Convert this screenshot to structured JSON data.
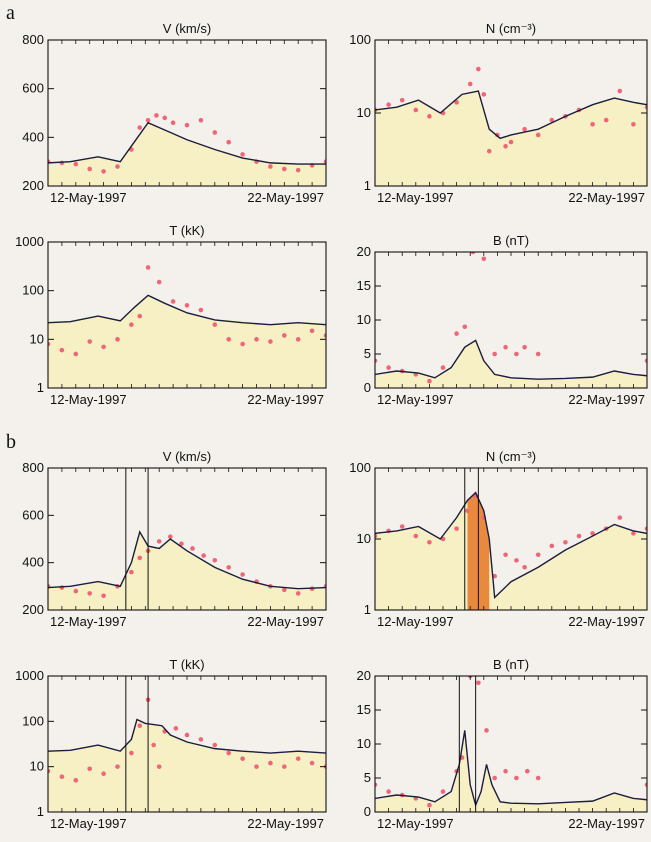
{
  "panel_labels": [
    "a",
    "b"
  ],
  "colors": {
    "fill": "#f7f0c4",
    "fill_dark": "#e8893e",
    "model_line": "#1c1c3c",
    "points": "#f06676",
    "axis": "#111111"
  },
  "chart_data": [
    {
      "type": "line",
      "title": "V (km/s)",
      "yscale": "linear",
      "ylim": [
        200,
        800
      ],
      "yticks": [
        200,
        400,
        600,
        800
      ],
      "xticks": [
        "12-May-1997",
        "22-May-1997"
      ],
      "series": [
        {
          "kind": "model",
          "x": [
            0,
            0.08,
            0.18,
            0.26,
            0.31,
            0.36,
            0.42,
            0.5,
            0.6,
            0.7,
            0.8,
            0.9,
            1
          ],
          "y": [
            295,
            300,
            320,
            300,
            380,
            460,
            430,
            390,
            350,
            315,
            295,
            290,
            290
          ]
        },
        {
          "kind": "observed",
          "x": [
            0,
            0.05,
            0.1,
            0.15,
            0.2,
            0.25,
            0.3,
            0.33,
            0.36,
            0.39,
            0.42,
            0.45,
            0.5,
            0.55,
            0.6,
            0.65,
            0.7,
            0.75,
            0.8,
            0.85,
            0.9,
            0.95,
            1
          ],
          "y": [
            300,
            295,
            290,
            270,
            260,
            280,
            350,
            440,
            470,
            490,
            480,
            460,
            450,
            470,
            420,
            380,
            330,
            300,
            280,
            270,
            265,
            285,
            300
          ]
        }
      ]
    },
    {
      "type": "line",
      "title": "N (cm⁻³)",
      "yscale": "log",
      "ylim": [
        1,
        100
      ],
      "yticks": [
        1,
        10,
        100
      ],
      "xticks": [
        "12-May-1997",
        "22-May-1997"
      ],
      "series": [
        {
          "kind": "model",
          "x": [
            0,
            0.08,
            0.16,
            0.24,
            0.32,
            0.38,
            0.42,
            0.46,
            0.5,
            0.6,
            0.7,
            0.8,
            0.88,
            0.95,
            1
          ],
          "y": [
            11,
            12,
            15,
            10,
            18,
            20,
            6,
            4.5,
            5,
            6,
            9,
            13,
            16,
            14,
            13
          ]
        },
        {
          "kind": "observed",
          "x": [
            0,
            0.05,
            0.1,
            0.15,
            0.2,
            0.25,
            0.3,
            0.35,
            0.38,
            0.4,
            0.42,
            0.45,
            0.48,
            0.5,
            0.55,
            0.6,
            0.65,
            0.7,
            0.75,
            0.8,
            0.85,
            0.9,
            0.95,
            1
          ],
          "y": [
            11,
            13,
            15,
            11,
            9,
            10,
            14,
            25,
            40,
            18,
            3,
            5,
            3.5,
            4,
            6,
            5,
            8,
            9,
            11,
            7,
            8,
            20,
            7,
            12
          ]
        }
      ]
    },
    {
      "type": "line",
      "title": "T (kK)",
      "yscale": "log",
      "ylim": [
        1,
        1000
      ],
      "yticks": [
        1,
        10,
        100,
        1000
      ],
      "xticks": [
        "12-May-1997",
        "22-May-1997"
      ],
      "series": [
        {
          "kind": "model",
          "x": [
            0,
            0.08,
            0.18,
            0.26,
            0.31,
            0.36,
            0.42,
            0.5,
            0.6,
            0.7,
            0.8,
            0.9,
            1
          ],
          "y": [
            22,
            23,
            30,
            24,
            45,
            80,
            55,
            35,
            25,
            22,
            20,
            22,
            20
          ]
        },
        {
          "kind": "observed",
          "x": [
            0,
            0.05,
            0.1,
            0.15,
            0.2,
            0.25,
            0.3,
            0.33,
            0.36,
            0.4,
            0.45,
            0.5,
            0.55,
            0.6,
            0.65,
            0.7,
            0.75,
            0.8,
            0.85,
            0.9,
            0.95,
            1
          ],
          "y": [
            8,
            6,
            5,
            9,
            7,
            10,
            20,
            30,
            300,
            150,
            60,
            50,
            40,
            20,
            10,
            8,
            10,
            9,
            12,
            10,
            15,
            12
          ]
        }
      ]
    },
    {
      "type": "line",
      "title": "B (nT)",
      "yscale": "linear",
      "ylim": [
        0,
        20
      ],
      "yticks": [
        0,
        5,
        10,
        15,
        20
      ],
      "xticks": [
        "12-May-1997",
        "22-May-1997"
      ],
      "series": [
        {
          "kind": "model",
          "x": [
            0,
            0.08,
            0.16,
            0.22,
            0.28,
            0.33,
            0.37,
            0.4,
            0.44,
            0.5,
            0.6,
            0.7,
            0.8,
            0.88,
            0.95,
            1
          ],
          "y": [
            2,
            2.5,
            2.2,
            1.5,
            3,
            6,
            7,
            4,
            2,
            1.5,
            1.3,
            1.4,
            1.6,
            2.5,
            2,
            1.8
          ]
        },
        {
          "kind": "observed",
          "x": [
            0,
            0.05,
            0.1,
            0.15,
            0.2,
            0.25,
            0.3,
            0.33,
            0.36,
            0.4,
            0.44,
            0.48,
            0.52,
            0.55,
            0.6,
            1
          ],
          "y": [
            4,
            3,
            2.5,
            2,
            1,
            3,
            8,
            9,
            20,
            19,
            5,
            6,
            5,
            6,
            5,
            4
          ]
        }
      ]
    },
    {
      "type": "line",
      "title": "V (km/s)",
      "yscale": "linear",
      "ylim": [
        200,
        800
      ],
      "yticks": [
        200,
        400,
        600,
        800
      ],
      "xticks": [
        "12-May-1997",
        "22-May-1997"
      ],
      "series": [
        {
          "kind": "model",
          "x": [
            0,
            0.08,
            0.18,
            0.26,
            0.3,
            0.33,
            0.36,
            0.4,
            0.44,
            0.5,
            0.6,
            0.7,
            0.8,
            0.9,
            1
          ],
          "y": [
            295,
            300,
            320,
            300,
            400,
            530,
            470,
            460,
            500,
            450,
            380,
            330,
            300,
            290,
            295
          ]
        },
        {
          "kind": "observed",
          "x": [
            0,
            0.05,
            0.1,
            0.15,
            0.2,
            0.25,
            0.3,
            0.33,
            0.36,
            0.4,
            0.44,
            0.48,
            0.52,
            0.56,
            0.6,
            0.65,
            0.7,
            0.75,
            0.8,
            0.85,
            0.9,
            0.95,
            1
          ],
          "y": [
            300,
            295,
            280,
            270,
            260,
            300,
            360,
            420,
            450,
            490,
            510,
            480,
            460,
            430,
            410,
            380,
            350,
            320,
            300,
            285,
            270,
            290,
            300
          ]
        }
      ]
    },
    {
      "type": "line",
      "title": "N (cm⁻³)",
      "yscale": "log",
      "ylim": [
        1,
        100
      ],
      "yticks": [
        1,
        10,
        100
      ],
      "xticks": [
        "12-May-1997",
        "22-May-1997"
      ],
      "series": [
        {
          "kind": "model",
          "x": [
            0,
            0.08,
            0.16,
            0.24,
            0.3,
            0.34,
            0.37,
            0.4,
            0.42,
            0.44,
            0.5,
            0.6,
            0.7,
            0.8,
            0.88,
            0.95,
            1
          ],
          "y": [
            12,
            13,
            15,
            10,
            20,
            35,
            45,
            25,
            10,
            1.5,
            2.5,
            4,
            7,
            11,
            16,
            13,
            12
          ]
        },
        {
          "kind": "observed",
          "x": [
            0,
            0.05,
            0.1,
            0.15,
            0.2,
            0.25,
            0.3,
            0.34,
            0.37,
            0.4,
            0.44,
            0.48,
            0.52,
            0.55,
            0.6,
            0.65,
            0.7,
            0.75,
            0.8,
            0.85,
            0.9,
            0.95,
            1
          ],
          "y": [
            11,
            13,
            15,
            11,
            9,
            10,
            14,
            25,
            40,
            20,
            3,
            6,
            5,
            4,
            6,
            8,
            9,
            11,
            12,
            14,
            20,
            12,
            14
          ]
        }
      ]
    },
    {
      "type": "line",
      "title": "T (kK)",
      "yscale": "log",
      "ylim": [
        1,
        1000
      ],
      "yticks": [
        1,
        10,
        100,
        1000
      ],
      "xticks": [
        "12-May-1997",
        "22-May-1997"
      ],
      "series": [
        {
          "kind": "model",
          "x": [
            0,
            0.08,
            0.18,
            0.26,
            0.3,
            0.32,
            0.35,
            0.38,
            0.41,
            0.44,
            0.5,
            0.6,
            0.7,
            0.8,
            0.9,
            1
          ],
          "y": [
            22,
            23,
            30,
            22,
            40,
            110,
            90,
            85,
            80,
            50,
            35,
            25,
            22,
            20,
            22,
            20
          ]
        },
        {
          "kind": "observed",
          "x": [
            0,
            0.05,
            0.1,
            0.15,
            0.2,
            0.25,
            0.3,
            0.33,
            0.36,
            0.38,
            0.4,
            0.42,
            0.46,
            0.5,
            0.55,
            0.6,
            0.65,
            0.7,
            0.75,
            0.8,
            0.85,
            0.9,
            0.95,
            1
          ],
          "y": [
            8,
            6,
            5,
            9,
            7,
            10,
            20,
            80,
            300,
            30,
            10,
            60,
            70,
            50,
            40,
            30,
            20,
            15,
            10,
            12,
            10,
            15,
            12,
            10
          ]
        }
      ]
    },
    {
      "type": "line",
      "title": "B (nT)",
      "yscale": "linear",
      "ylim": [
        0,
        20
      ],
      "yticks": [
        0,
        5,
        10,
        15,
        20
      ],
      "xticks": [
        "12-May-1997",
        "22-May-1997"
      ],
      "series": [
        {
          "kind": "model",
          "x": [
            0,
            0.08,
            0.16,
            0.22,
            0.28,
            0.31,
            0.33,
            0.35,
            0.37,
            0.39,
            0.41,
            0.43,
            0.46,
            0.5,
            0.6,
            0.7,
            0.8,
            0.88,
            0.95,
            1
          ],
          "y": [
            2,
            2.5,
            2.2,
            1.5,
            3,
            7,
            12,
            4,
            1,
            3,
            7,
            4,
            1.5,
            1.3,
            1.2,
            1.4,
            1.6,
            2.8,
            2,
            1.8
          ]
        },
        {
          "kind": "observed",
          "x": [
            0,
            0.05,
            0.1,
            0.15,
            0.2,
            0.25,
            0.3,
            0.32,
            0.35,
            0.38,
            0.41,
            0.44,
            0.48,
            0.52,
            0.56,
            0.6,
            1
          ],
          "y": [
            4,
            3,
            2.5,
            2,
            1,
            3,
            6,
            8,
            20,
            19,
            12,
            5,
            6,
            5,
            6,
            5,
            4
          ]
        }
      ]
    }
  ]
}
